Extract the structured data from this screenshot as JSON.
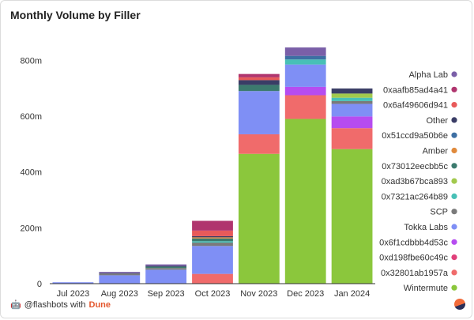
{
  "footer": {
    "text": "@flashbots with",
    "brand": "Dune",
    "icon": "flashbots-robot-icon"
  },
  "chart_data": {
    "type": "bar",
    "stacked": true,
    "title": "Monthly Volume by Filler",
    "xlabel": "",
    "ylabel": "",
    "categories": [
      "Jul 2023",
      "Aug 2023",
      "Sep 2023",
      "Oct 2023",
      "Nov 2023",
      "Dec 2023",
      "Jan 2024"
    ],
    "ylim": [
      0,
      900000000
    ],
    "yticks": [
      0,
      200000000,
      400000000,
      600000000,
      800000000
    ],
    "ytick_labels": [
      "0",
      "200m",
      "400m",
      "600m",
      "800m"
    ],
    "grid": false,
    "legend_position": "right",
    "series": [
      {
        "name": "Wintermute",
        "color": "#8bc73c",
        "values": [
          0,
          0,
          0,
          0,
          465000000,
          590000000,
          482000000
        ]
      },
      {
        "name": "0x32801ab1957a",
        "color": "#f06b6b",
        "values": [
          0,
          0,
          0,
          35000000,
          70000000,
          85000000,
          75000000
        ]
      },
      {
        "name": "0xd198fbe60c49c",
        "color": "#e0407a",
        "values": [
          0,
          0,
          0,
          0,
          0,
          0,
          0
        ]
      },
      {
        "name": "0x6f1cdbbb4d53c",
        "color": "#b64cf0",
        "values": [
          0,
          0,
          0,
          0,
          0,
          30000000,
          42000000
        ]
      },
      {
        "name": "Tokka Labs",
        "color": "#7f8ff5",
        "values": [
          5000000,
          30000000,
          50000000,
          100000000,
          155000000,
          80000000,
          45000000
        ]
      },
      {
        "name": "SCP",
        "color": "#7a7a7a",
        "values": [
          0,
          6000000,
          6000000,
          12000000,
          0,
          0,
          10000000
        ]
      },
      {
        "name": "0x7321ac264b89",
        "color": "#48c0b6",
        "values": [
          0,
          0,
          0,
          5000000,
          0,
          18000000,
          12000000
        ]
      },
      {
        "name": "0xad3b67bca893",
        "color": "#a2c94d",
        "values": [
          0,
          0,
          0,
          0,
          0,
          0,
          15000000
        ]
      },
      {
        "name": "0x73012eecbb5c",
        "color": "#3c7a6e",
        "values": [
          0,
          0,
          5000000,
          10000000,
          22000000,
          0,
          0
        ]
      },
      {
        "name": "Amber",
        "color": "#e08a3c",
        "values": [
          0,
          0,
          0,
          4000000,
          0,
          0,
          0
        ]
      },
      {
        "name": "0x51ccd9a50b6e",
        "color": "#3d6fa3",
        "values": [
          0,
          0,
          0,
          0,
          0,
          13000000,
          0
        ]
      },
      {
        "name": "Other",
        "color": "#3a3d66",
        "values": [
          0,
          2000000,
          3000000,
          4000000,
          17000000,
          0,
          18000000
        ]
      },
      {
        "name": "0x6af49606d941",
        "color": "#e85a5a",
        "values": [
          0,
          0,
          0,
          20000000,
          10000000,
          0,
          0
        ]
      },
      {
        "name": "0xaafb85ad4a41",
        "color": "#b0356e",
        "values": [
          0,
          0,
          0,
          35000000,
          12000000,
          0,
          0
        ]
      },
      {
        "name": "Alpha Lab",
        "color": "#7a5fa8",
        "values": [
          0,
          4000000,
          5000000,
          0,
          0,
          30000000,
          0
        ]
      }
    ]
  }
}
